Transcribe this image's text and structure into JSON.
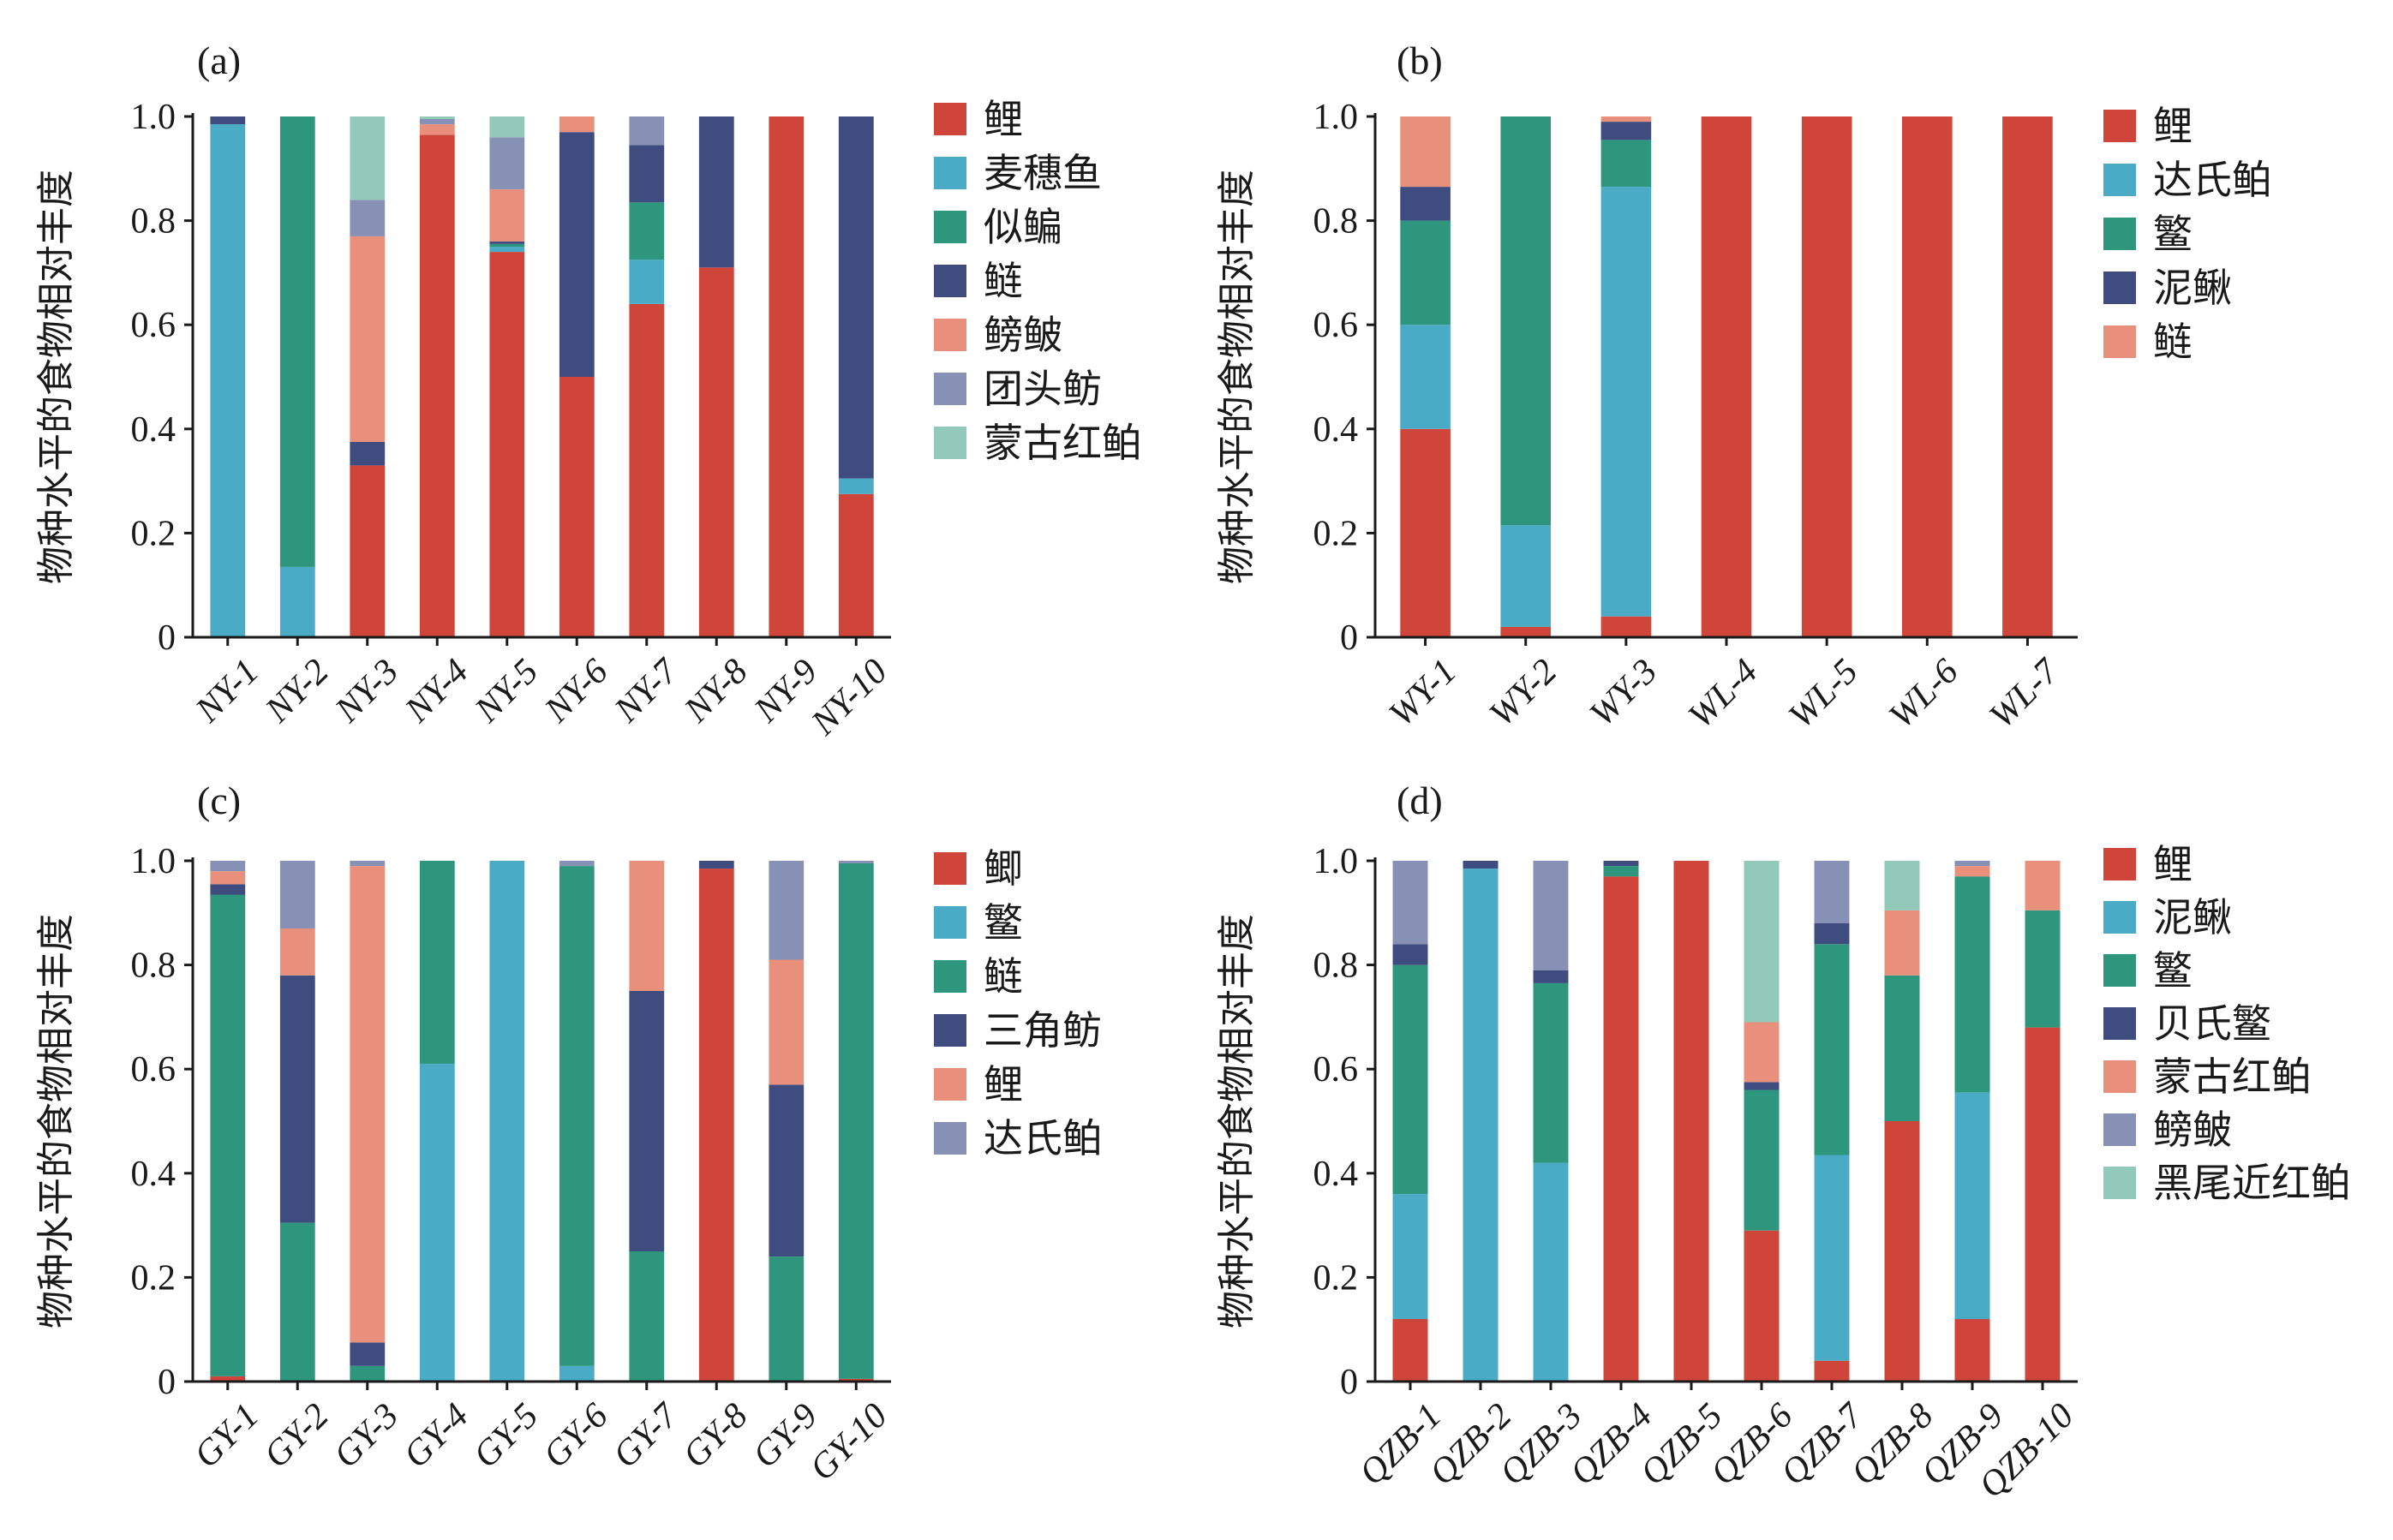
{
  "chart_data": [
    {
      "id": "a",
      "panel_label": "(a)",
      "type": "bar",
      "stacked": true,
      "ylabel": "物种水平的食物相对丰度",
      "ylim": [
        0,
        1
      ],
      "yticks": [
        "0",
        "0.2",
        "0.4",
        "0.6",
        "0.8",
        "1.0"
      ],
      "categories": [
        "NY-1",
        "NY-2",
        "NY-3",
        "NY-4",
        "NY-5",
        "NY-6",
        "NY-7",
        "NY-8",
        "NY-9",
        "NY-10"
      ],
      "series": [
        {
          "name": "鲤",
          "color": "#d0453a",
          "values": [
            0,
            0,
            0.33,
            0.965,
            0.74,
            0.5,
            0.64,
            0.71,
            1.0,
            0.275
          ]
        },
        {
          "name": "麦穗鱼",
          "color": "#4aabc6",
          "values": [
            0.985,
            0.135,
            0,
            0,
            0.01,
            0,
            0.085,
            0,
            0,
            0.03
          ]
        },
        {
          "name": "似鳊",
          "color": "#2e967c",
          "values": [
            0,
            0.865,
            0,
            0,
            0.005,
            0,
            0.11,
            0,
            0,
            0
          ]
        },
        {
          "name": "鲢",
          "color": "#3f4c80",
          "values": [
            0.015,
            0,
            0.045,
            0,
            0.005,
            0.47,
            0.11,
            0.29,
            0,
            0.695
          ]
        },
        {
          "name": "鳑鲏",
          "color": "#e8907c",
          "values": [
            0,
            0,
            0.395,
            0.02,
            0.1,
            0.03,
            0,
            0,
            0,
            0
          ]
        },
        {
          "name": "团头鲂",
          "color": "#8791b5",
          "values": [
            0,
            0,
            0.07,
            0.01,
            0.1,
            0,
            0.055,
            0,
            0,
            0
          ]
        },
        {
          "name": "蒙古红鲌",
          "color": "#92c9b8",
          "values": [
            0,
            0,
            0.16,
            0.005,
            0.04,
            0,
            0,
            0,
            0,
            0
          ]
        }
      ]
    },
    {
      "id": "b",
      "panel_label": "(b)",
      "type": "bar",
      "stacked": true,
      "ylabel": "物种水平的食物相对丰度",
      "ylim": [
        0,
        1
      ],
      "yticks": [
        "0",
        "0.2",
        "0.4",
        "0.6",
        "0.8",
        "1.0"
      ],
      "categories": [
        "WY-1",
        "WY-2",
        "WY-3",
        "WL-4",
        "WL-5",
        "WL-6",
        "WL-7"
      ],
      "series": [
        {
          "name": "鲤",
          "color": "#d0453a",
          "values": [
            0.4,
            0.02,
            0.04,
            1.0,
            1.0,
            1.0,
            1.0
          ]
        },
        {
          "name": "达氏鲌",
          "color": "#4aabc6",
          "values": [
            0.2,
            0.195,
            0.825,
            0,
            0,
            0,
            0
          ]
        },
        {
          "name": "鳘",
          "color": "#2e967c",
          "values": [
            0.2,
            0.785,
            0.09,
            0,
            0,
            0,
            0
          ]
        },
        {
          "name": "泥鳅",
          "color": "#3f4c80",
          "values": [
            0.065,
            0,
            0.035,
            0,
            0,
            0,
            0
          ]
        },
        {
          "name": "鲢",
          "color": "#e8907c",
          "values": [
            0.135,
            0,
            0.01,
            0,
            0,
            0,
            0
          ]
        }
      ]
    },
    {
      "id": "c",
      "panel_label": "(c)",
      "type": "bar",
      "stacked": true,
      "ylabel": "物种水平的食物相对丰度",
      "ylim": [
        0,
        1
      ],
      "yticks": [
        "0",
        "0.2",
        "0.4",
        "0.6",
        "0.8",
        "1.0"
      ],
      "categories": [
        "GY-1",
        "GY-2",
        "GY-3",
        "GY-4",
        "GY-5",
        "GY-6",
        "GY-7",
        "GY-8",
        "GY-9",
        "GY-10"
      ],
      "series": [
        {
          "name": "鲫",
          "color": "#d0453a",
          "values": [
            0.01,
            0,
            0,
            0,
            0,
            0,
            0,
            0.985,
            0,
            0.005
          ]
        },
        {
          "name": "鳘",
          "color": "#4aabc6",
          "values": [
            0,
            0,
            0,
            0.61,
            1.0,
            0.03,
            0,
            0,
            0,
            0
          ]
        },
        {
          "name": "鲢",
          "color": "#2e967c",
          "values": [
            0.925,
            0.305,
            0.03,
            0.39,
            0,
            0.96,
            0.25,
            0,
            0.24,
            0.99
          ]
        },
        {
          "name": "三角鲂",
          "color": "#3f4c80",
          "values": [
            0.02,
            0.475,
            0.045,
            0,
            0,
            0,
            0.5,
            0.015,
            0.33,
            0
          ]
        },
        {
          "name": "鲤",
          "color": "#e8907c",
          "values": [
            0.025,
            0.09,
            0.915,
            0,
            0,
            0,
            0.25,
            0,
            0.24,
            0
          ]
        },
        {
          "name": "达氏鲌",
          "color": "#8791b5",
          "values": [
            0.02,
            0.13,
            0.01,
            0,
            0,
            0.01,
            0,
            0,
            0.19,
            0.005
          ]
        }
      ]
    },
    {
      "id": "d",
      "panel_label": "(d)",
      "type": "bar",
      "stacked": true,
      "ylabel": "物种水平的食物相对丰度",
      "ylim": [
        0,
        1
      ],
      "yticks": [
        "0",
        "0.2",
        "0.4",
        "0.6",
        "0.8",
        "1.0"
      ],
      "categories": [
        "QZB-1",
        "QZB-2",
        "QZB-3",
        "QZB-4",
        "QZB-5",
        "QZB-6",
        "QZB-7",
        "QZB-8",
        "QZB-9",
        "QZB-10"
      ],
      "series": [
        {
          "name": "鲤",
          "color": "#d0453a",
          "values": [
            0.12,
            0,
            0,
            0.97,
            1.0,
            0.29,
            0.04,
            0.5,
            0.12,
            0.68
          ]
        },
        {
          "name": "泥鳅",
          "color": "#4aabc6",
          "values": [
            0.24,
            0.985,
            0.42,
            0,
            0,
            0,
            0.395,
            0,
            0.435,
            0
          ]
        },
        {
          "name": "鳘",
          "color": "#2e967c",
          "values": [
            0.44,
            0,
            0.345,
            0.02,
            0,
            0.27,
            0.405,
            0.28,
            0.415,
            0.225
          ]
        },
        {
          "name": "贝氏鳘",
          "color": "#3f4c80",
          "values": [
            0.04,
            0.015,
            0.025,
            0.01,
            0,
            0.015,
            0.04,
            0,
            0,
            0
          ]
        },
        {
          "name": "蒙古红鲌",
          "color": "#e8907c",
          "values": [
            0,
            0,
            0,
            0,
            0,
            0.115,
            0,
            0.125,
            0.02,
            0.095
          ]
        },
        {
          "name": "鳑鲏",
          "color": "#8791b5",
          "values": [
            0.16,
            0,
            0.21,
            0,
            0,
            0,
            0.12,
            0,
            0.01,
            0
          ]
        },
        {
          "name": "黑尾近红鲌",
          "color": "#92c9b8",
          "values": [
            0,
            0,
            0,
            0,
            0,
            0.31,
            0,
            0.095,
            0,
            0
          ]
        }
      ]
    }
  ]
}
